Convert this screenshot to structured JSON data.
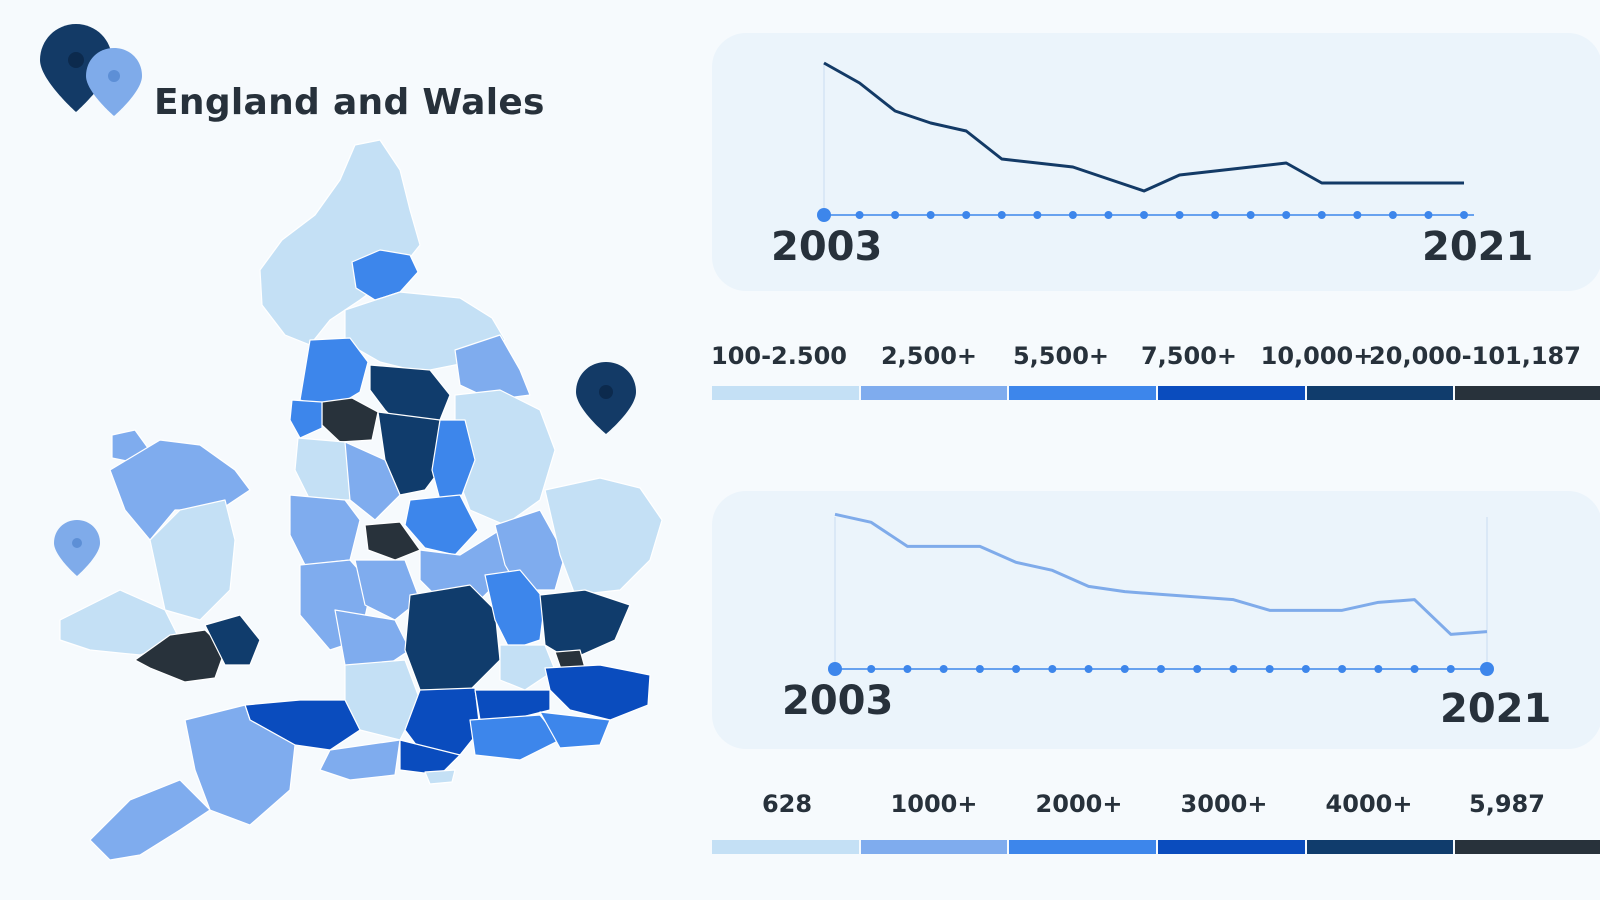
{
  "title": "England and Wales",
  "colors": {
    "c1": "#c4e0f5",
    "c2": "#7facee",
    "c3": "#3d86eb",
    "c4": "#0a4cbe",
    "c5": "#103c6c",
    "c6": "#28323b",
    "line1": "#133a66",
    "line2": "#7fabea",
    "axis": "#3d86eb"
  },
  "chart_data": [
    {
      "type": "line",
      "x": [
        2003,
        2004,
        2005,
        2006,
        2007,
        2008,
        2009,
        2010,
        2011,
        2012,
        2013,
        2014,
        2015,
        2016,
        2017,
        2018,
        2019,
        2020,
        2021
      ],
      "x_start_label": "2003",
      "x_end_label": "2021",
      "series": [
        {
          "values": [
            100,
            95,
            88,
            85,
            83,
            76,
            75,
            74,
            71,
            68,
            72,
            73,
            74,
            75,
            70,
            70,
            70,
            70,
            70
          ]
        }
      ],
      "ylim": [
        60,
        102
      ],
      "grid": false
    },
    {
      "type": "line",
      "x": [
        2003,
        2004,
        2005,
        2006,
        2007,
        2008,
        2009,
        2010,
        2011,
        2012,
        2013,
        2014,
        2015,
        2016,
        2017,
        2018,
        2019,
        2020,
        2021
      ],
      "x_start_label": "2003",
      "x_end_label": "2021",
      "series": [
        {
          "values": [
            100,
            97,
            88,
            88,
            88,
            82,
            79,
            73,
            71,
            70,
            69,
            68,
            64,
            64,
            64,
            67,
            68,
            55,
            56
          ]
        }
      ],
      "ylim": [
        45,
        102
      ],
      "grid": false
    }
  ],
  "legend1": {
    "labels": [
      "100-2.500",
      "2,500+",
      "5,500+",
      "7,500+",
      "10,000+",
      "20,000-101,187"
    ]
  },
  "legend2": {
    "labels": [
      "628",
      "1000+",
      "2000+",
      "3000+",
      "4000+",
      "5,987"
    ]
  }
}
